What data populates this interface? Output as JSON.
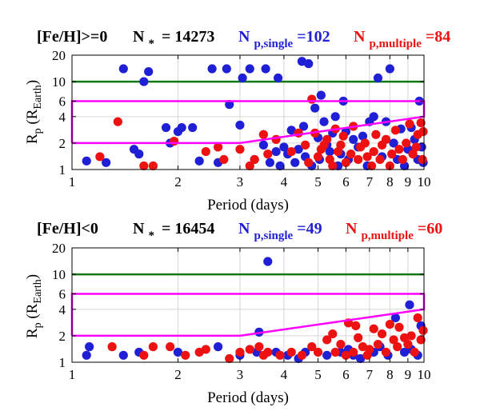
{
  "colors": {
    "single": "#1f1fd6",
    "multiple": "#ee1111",
    "hline": "#117711",
    "box": "#ff00ff",
    "grid": "#d6d6d6"
  },
  "chart_data": [
    {
      "type": "scatter",
      "title_parts": [
        "[Fe/H]>=0",
        "N",
        "*",
        "= 14273",
        "N",
        "p,single",
        "=102",
        "N",
        "p,multiple",
        "=84"
      ],
      "xlabel": "Period (days)",
      "ylabel_parts": [
        "R",
        "p",
        " (R",
        "Earth",
        ")"
      ],
      "x_scale": "log",
      "y_scale": "log",
      "xlim": [
        1,
        10
      ],
      "ylim": [
        1,
        20
      ],
      "x_ticks": [
        1,
        2,
        3,
        4,
        5,
        6,
        7,
        8,
        9,
        10
      ],
      "y_ticks": [
        1,
        2,
        4,
        6,
        10,
        20
      ],
      "grid": true,
      "hline": 10,
      "region": [
        [
          1,
          2
        ],
        [
          3,
          2
        ],
        [
          10,
          4
        ],
        [
          10,
          6
        ],
        [
          1,
          6
        ],
        [
          1,
          2
        ]
      ],
      "series": [
        {
          "name": "single",
          "points": [
            [
              1.1,
              1.25
            ],
            [
              1.25,
              1.2
            ],
            [
              1.4,
              14
            ],
            [
              1.5,
              1.7
            ],
            [
              1.55,
              1.5
            ],
            [
              1.6,
              10
            ],
            [
              1.65,
              13
            ],
            [
              1.85,
              3
            ],
            [
              1.9,
              2
            ],
            [
              2.0,
              2.7
            ],
            [
              2.05,
              3
            ],
            [
              2.2,
              3
            ],
            [
              2.3,
              1.25
            ],
            [
              2.5,
              14
            ],
            [
              2.6,
              1.2
            ],
            [
              2.75,
              14
            ],
            [
              2.8,
              5.5
            ],
            [
              3.0,
              3.2
            ],
            [
              3.05,
              11
            ],
            [
              3.2,
              14
            ],
            [
              3.3,
              1.3
            ],
            [
              3.5,
              1.9
            ],
            [
              3.55,
              14
            ],
            [
              3.65,
              1.2
            ],
            [
              3.8,
              1.6
            ],
            [
              3.85,
              11
            ],
            [
              3.9,
              1.1
            ],
            [
              4.0,
              1.8
            ],
            [
              4.1,
              1.5
            ],
            [
              4.2,
              2.8
            ],
            [
              4.3,
              1.2
            ],
            [
              4.4,
              1.7
            ],
            [
              4.5,
              17
            ],
            [
              4.55,
              3.1
            ],
            [
              4.6,
              1.4
            ],
            [
              4.7,
              16
            ],
            [
              4.8,
              1.1
            ],
            [
              4.9,
              5
            ],
            [
              5.0,
              2.3
            ],
            [
              5.05,
              1.3
            ],
            [
              5.1,
              7
            ],
            [
              5.2,
              3.5
            ],
            [
              5.3,
              1.9
            ],
            [
              5.4,
              1.6
            ],
            [
              5.5,
              2.6
            ],
            [
              5.6,
              4
            ],
            [
              5.7,
              1.1
            ],
            [
              5.8,
              1.5
            ],
            [
              5.9,
              6
            ],
            [
              6.0,
              2.7
            ],
            [
              6.1,
              1.3
            ],
            [
              6.3,
              2.2
            ],
            [
              6.5,
              1.8
            ],
            [
              6.7,
              2.4
            ],
            [
              6.9,
              1.1
            ],
            [
              7.0,
              3.5
            ],
            [
              7.2,
              4
            ],
            [
              7.4,
              11
            ],
            [
              7.6,
              1.4
            ],
            [
              7.8,
              3.5
            ],
            [
              8.0,
              14
            ],
            [
              8.2,
              2
            ],
            [
              8.4,
              1.3
            ],
            [
              8.6,
              2.9
            ],
            [
              8.8,
              1.1
            ],
            [
              9.0,
              1.7
            ],
            [
              9.2,
              3
            ],
            [
              9.4,
              2.2
            ],
            [
              9.6,
              1.3
            ],
            [
              9.7,
              6
            ],
            [
              9.85,
              1.8
            ],
            [
              10.0,
              1.2
            ]
          ]
        },
        {
          "name": "multiple",
          "points": [
            [
              1.2,
              1.4
            ],
            [
              1.35,
              3.5
            ],
            [
              1.6,
              1.1
            ],
            [
              1.7,
              1.1
            ],
            [
              1.95,
              2.1
            ],
            [
              2.4,
              1.6
            ],
            [
              2.6,
              1.8
            ],
            [
              2.7,
              1.3
            ],
            [
              3.0,
              1.7
            ],
            [
              3.2,
              1.1
            ],
            [
              3.3,
              1.3
            ],
            [
              3.5,
              2.5
            ],
            [
              3.6,
              1.5
            ],
            [
              3.8,
              2.2
            ],
            [
              4.2,
              1.6
            ],
            [
              4.4,
              2.6
            ],
            [
              4.6,
              1.9
            ],
            [
              4.7,
              1.2
            ],
            [
              4.8,
              6.3
            ],
            [
              4.9,
              2.6
            ],
            [
              5.0,
              1.4
            ],
            [
              5.1,
              1.7
            ],
            [
              5.2,
              1.9
            ],
            [
              5.3,
              2.2
            ],
            [
              5.4,
              1.3
            ],
            [
              5.5,
              1.1
            ],
            [
              5.6,
              2.9
            ],
            [
              5.7,
              1.6
            ],
            [
              5.8,
              1.9
            ],
            [
              5.9,
              2.4
            ],
            [
              6.0,
              1.2
            ],
            [
              6.2,
              1.5
            ],
            [
              6.3,
              3.1
            ],
            [
              6.5,
              1.3
            ],
            [
              6.6,
              1.8
            ],
            [
              6.8,
              2
            ],
            [
              6.9,
              1.4
            ],
            [
              7.1,
              1.1
            ],
            [
              7.2,
              1.6
            ],
            [
              7.3,
              2.5
            ],
            [
              7.5,
              1.3
            ],
            [
              7.6,
              1.9
            ],
            [
              7.8,
              2.2
            ],
            [
              8.0,
              1.1
            ],
            [
              8.1,
              1.5
            ],
            [
              8.3,
              2.8
            ],
            [
              8.5,
              1.7
            ],
            [
              8.7,
              1.3
            ],
            [
              8.9,
              2
            ],
            [
              9.1,
              3.3
            ],
            [
              9.3,
              1.5
            ],
            [
              9.5,
              1.8
            ],
            [
              9.6,
              2.5
            ],
            [
              9.8,
              3.4
            ],
            [
              9.9,
              1.3
            ],
            [
              10.0,
              2.7
            ]
          ]
        }
      ]
    },
    {
      "type": "scatter",
      "title_parts": [
        "[Fe/H]<0",
        "N",
        "*",
        "= 16454",
        "N",
        "p,single",
        "=49",
        "N",
        "p,multiple",
        "=60"
      ],
      "xlabel": "Period (days)",
      "ylabel_parts": [
        "R",
        "p",
        " (R",
        "Earth",
        ")"
      ],
      "x_scale": "log",
      "y_scale": "log",
      "xlim": [
        1,
        10
      ],
      "ylim": [
        1,
        20
      ],
      "x_ticks": [
        1,
        2,
        3,
        4,
        5,
        6,
        7,
        8,
        9,
        10
      ],
      "y_ticks": [
        1,
        2,
        4,
        6,
        10,
        20
      ],
      "grid": true,
      "hline": 10,
      "region": [
        [
          1,
          2
        ],
        [
          3,
          2
        ],
        [
          10,
          4
        ],
        [
          10,
          6
        ],
        [
          1,
          6
        ],
        [
          1,
          2
        ]
      ],
      "series": [
        {
          "name": "single",
          "points": [
            [
              1.1,
              1.2
            ],
            [
              1.12,
              1.5
            ],
            [
              1.4,
              1.2
            ],
            [
              1.55,
              1.3
            ],
            [
              2.0,
              1.3
            ],
            [
              2.6,
              1.5
            ],
            [
              3.0,
              1.2
            ],
            [
              3.35,
              1.3
            ],
            [
              3.4,
              2.2
            ],
            [
              3.6,
              14
            ],
            [
              3.8,
              1.3
            ],
            [
              4.1,
              1.2
            ],
            [
              4.4,
              1.1
            ],
            [
              4.6,
              1.3
            ],
            [
              5.3,
              1.2
            ],
            [
              5.8,
              1.3
            ],
            [
              6.1,
              1.4
            ],
            [
              6.3,
              1.2
            ],
            [
              6.6,
              1.1
            ],
            [
              7.2,
              1.3
            ],
            [
              7.5,
              1.5
            ],
            [
              7.9,
              1.2
            ],
            [
              8.3,
              3.2
            ],
            [
              8.8,
              1.3
            ],
            [
              9.1,
              4.5
            ],
            [
              9.2,
              1.4
            ],
            [
              9.6,
              1.2
            ],
            [
              9.8,
              2.6
            ]
          ]
        },
        {
          "name": "multiple",
          "points": [
            [
              1.3,
              1.5
            ],
            [
              1.6,
              1.2
            ],
            [
              1.7,
              1.5
            ],
            [
              1.9,
              1.5
            ],
            [
              2.1,
              1.2
            ],
            [
              2.3,
              1.3
            ],
            [
              2.4,
              1.4
            ],
            [
              2.8,
              1.1
            ],
            [
              3.0,
              1.3
            ],
            [
              3.2,
              1.4
            ],
            [
              3.4,
              1.5
            ],
            [
              3.5,
              1.2
            ],
            [
              3.6,
              1.3
            ],
            [
              3.9,
              1.2
            ],
            [
              4.2,
              1.3
            ],
            [
              4.5,
              1.2
            ],
            [
              4.8,
              1.5
            ],
            [
              5.0,
              1.3
            ],
            [
              5.3,
              1.8
            ],
            [
              5.5,
              2.1
            ],
            [
              5.6,
              1.3
            ],
            [
              5.8,
              1.6
            ],
            [
              6.0,
              1.2
            ],
            [
              6.1,
              2.8
            ],
            [
              6.3,
              1.3
            ],
            [
              6.4,
              2.6
            ],
            [
              6.5,
              1.9
            ],
            [
              6.7,
              1.5
            ],
            [
              6.9,
              1.2
            ],
            [
              7.0,
              1.4
            ],
            [
              7.2,
              2.4
            ],
            [
              7.4,
              1.6
            ],
            [
              7.6,
              2.1
            ],
            [
              7.8,
              1.3
            ],
            [
              8.0,
              2.7
            ],
            [
              8.2,
              1.8
            ],
            [
              8.4,
              1.5
            ],
            [
              8.5,
              2.5
            ],
            [
              8.8,
              1.9
            ],
            [
              9.0,
              1.6
            ],
            [
              9.2,
              2
            ],
            [
              9.4,
              1.3
            ],
            [
              9.6,
              3.2
            ],
            [
              9.8,
              1.8
            ],
            [
              10.0,
              2.3
            ]
          ]
        }
      ]
    }
  ]
}
